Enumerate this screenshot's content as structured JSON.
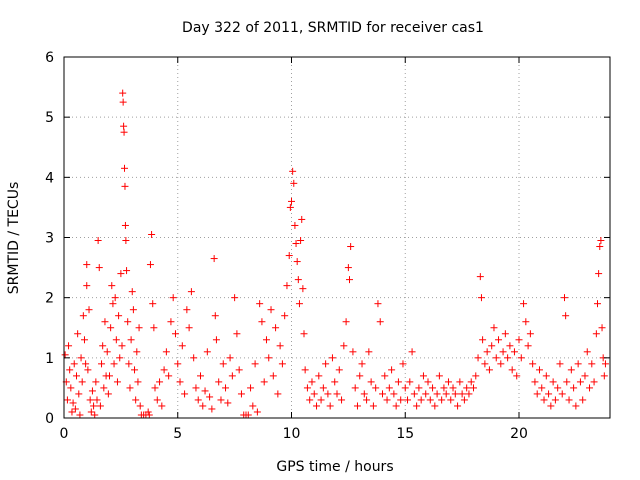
{
  "chart_data": {
    "type": "scatter",
    "title": "Day 322 of 2011, SRMTID for receiver cas1",
    "xlabel": "GPS time / hours",
    "ylabel": "SRMTID / TECUs",
    "xlim": [
      0,
      24
    ],
    "ylim": [
      0,
      6
    ],
    "x_ticks": [
      0,
      5,
      10,
      15,
      20
    ],
    "y_ticks": [
      0,
      1,
      2,
      3,
      4,
      5,
      6
    ],
    "grid": true,
    "marker": "plus",
    "series": [
      {
        "name": "cas1",
        "color": "#ff0000",
        "points": [
          [
            0.05,
            1.05
          ],
          [
            0.1,
            0.6
          ],
          [
            0.15,
            0.3
          ],
          [
            0.2,
            1.2
          ],
          [
            0.25,
            0.8
          ],
          [
            0.3,
            0.5
          ],
          [
            0.35,
            0.1
          ],
          [
            0.4,
            0.25
          ],
          [
            0.45,
            0.9
          ],
          [
            0.5,
            0.15
          ],
          [
            0.55,
            0.7
          ],
          [
            0.6,
            1.4
          ],
          [
            0.65,
            0.4
          ],
          [
            0.7,
            0.05
          ],
          [
            0.75,
            1.0
          ],
          [
            0.8,
            0.6
          ],
          [
            0.85,
            1.7
          ],
          [
            0.9,
            1.3
          ],
          [
            0.95,
            0.9
          ],
          [
            1.0,
            2.55
          ],
          [
            1.0,
            2.2
          ],
          [
            1.05,
            0.8
          ],
          [
            1.1,
            1.8
          ],
          [
            1.15,
            0.3
          ],
          [
            1.2,
            0.1
          ],
          [
            1.25,
            0.45
          ],
          [
            1.3,
            0.2
          ],
          [
            1.35,
            0.05
          ],
          [
            1.4,
            0.6
          ],
          [
            1.45,
            0.3
          ],
          [
            1.5,
            2.95
          ],
          [
            1.55,
            2.5
          ],
          [
            1.6,
            0.2
          ],
          [
            1.65,
            0.9
          ],
          [
            1.7,
            1.2
          ],
          [
            1.75,
            0.5
          ],
          [
            1.8,
            1.6
          ],
          [
            1.85,
            0.7
          ],
          [
            1.9,
            1.1
          ],
          [
            1.95,
            0.4
          ],
          [
            2.0,
            0.7
          ],
          [
            2.05,
            1.5
          ],
          [
            2.1,
            2.2
          ],
          [
            2.15,
            1.9
          ],
          [
            2.2,
            0.9
          ],
          [
            2.25,
            2.0
          ],
          [
            2.3,
            1.3
          ],
          [
            2.35,
            0.6
          ],
          [
            2.4,
            1.7
          ],
          [
            2.45,
            1.0
          ],
          [
            2.5,
            2.4
          ],
          [
            2.55,
            1.2
          ],
          [
            2.58,
            5.4
          ],
          [
            2.6,
            5.25
          ],
          [
            2.62,
            4.85
          ],
          [
            2.64,
            4.75
          ],
          [
            2.66,
            4.15
          ],
          [
            2.68,
            3.85
          ],
          [
            2.7,
            3.2
          ],
          [
            2.72,
            2.95
          ],
          [
            2.75,
            2.45
          ],
          [
            2.8,
            1.6
          ],
          [
            2.85,
            0.9
          ],
          [
            2.9,
            0.5
          ],
          [
            2.95,
            1.3
          ],
          [
            3.0,
            2.1
          ],
          [
            3.05,
            1.8
          ],
          [
            3.1,
            0.8
          ],
          [
            3.15,
            0.3
          ],
          [
            3.2,
            1.1
          ],
          [
            3.25,
            0.6
          ],
          [
            3.3,
            1.5
          ],
          [
            3.35,
            0.2
          ],
          [
            3.4,
            0.05
          ],
          [
            3.5,
            0.05
          ],
          [
            3.6,
            0.05
          ],
          [
            3.7,
            0.1
          ],
          [
            3.75,
            0.05
          ],
          [
            3.8,
            2.55
          ],
          [
            3.85,
            3.05
          ],
          [
            3.9,
            1.9
          ],
          [
            3.95,
            1.5
          ],
          [
            4.0,
            0.5
          ],
          [
            4.1,
            0.3
          ],
          [
            4.2,
            0.6
          ],
          [
            4.3,
            0.2
          ],
          [
            4.4,
            0.8
          ],
          [
            4.5,
            1.1
          ],
          [
            4.6,
            0.7
          ],
          [
            4.7,
            1.6
          ],
          [
            4.8,
            2.0
          ],
          [
            4.9,
            1.4
          ],
          [
            5.0,
            0.9
          ],
          [
            5.1,
            0.6
          ],
          [
            5.2,
            1.2
          ],
          [
            5.3,
            0.4
          ],
          [
            5.4,
            1.8
          ],
          [
            5.5,
            1.5
          ],
          [
            5.6,
            2.1
          ],
          [
            5.7,
            1.0
          ],
          [
            5.8,
            0.5
          ],
          [
            5.9,
            0.3
          ],
          [
            6.0,
            0.7
          ],
          [
            6.1,
            0.2
          ],
          [
            6.2,
            0.45
          ],
          [
            6.3,
            1.1
          ],
          [
            6.4,
            0.35
          ],
          [
            6.5,
            0.15
          ],
          [
            6.6,
            2.65
          ],
          [
            6.65,
            1.7
          ],
          [
            6.7,
            1.3
          ],
          [
            6.8,
            0.6
          ],
          [
            6.9,
            0.3
          ],
          [
            7.0,
            0.9
          ],
          [
            7.1,
            0.5
          ],
          [
            7.2,
            0.25
          ],
          [
            7.3,
            1.0
          ],
          [
            7.4,
            0.7
          ],
          [
            7.5,
            2.0
          ],
          [
            7.6,
            1.4
          ],
          [
            7.7,
            0.8
          ],
          [
            7.8,
            0.4
          ],
          [
            7.9,
            0.05
          ],
          [
            8.0,
            0.05
          ],
          [
            8.1,
            0.05
          ],
          [
            8.2,
            0.5
          ],
          [
            8.3,
            0.2
          ],
          [
            8.4,
            0.9
          ],
          [
            8.5,
            0.1
          ],
          [
            8.6,
            1.9
          ],
          [
            8.7,
            1.6
          ],
          [
            8.8,
            0.6
          ],
          [
            8.9,
            1.3
          ],
          [
            9.0,
            1.0
          ],
          [
            9.1,
            1.8
          ],
          [
            9.2,
            0.7
          ],
          [
            9.3,
            1.5
          ],
          [
            9.4,
            0.4
          ],
          [
            9.5,
            1.2
          ],
          [
            9.6,
            0.9
          ],
          [
            9.7,
            1.7
          ],
          [
            9.8,
            2.2
          ],
          [
            9.9,
            2.7
          ],
          [
            9.95,
            3.5
          ],
          [
            10.0,
            3.6
          ],
          [
            10.05,
            4.1
          ],
          [
            10.1,
            3.9
          ],
          [
            10.15,
            3.2
          ],
          [
            10.2,
            2.9
          ],
          [
            10.25,
            2.6
          ],
          [
            10.3,
            2.3
          ],
          [
            10.35,
            1.9
          ],
          [
            10.4,
            2.95
          ],
          [
            10.45,
            3.3
          ],
          [
            10.5,
            2.15
          ],
          [
            10.55,
            1.4
          ],
          [
            10.6,
            0.8
          ],
          [
            10.7,
            0.5
          ],
          [
            10.8,
            0.3
          ],
          [
            10.9,
            0.6
          ],
          [
            11.0,
            0.4
          ],
          [
            11.1,
            0.2
          ],
          [
            11.2,
            0.7
          ],
          [
            11.3,
            0.3
          ],
          [
            11.4,
            0.5
          ],
          [
            11.5,
            0.9
          ],
          [
            11.6,
            0.4
          ],
          [
            11.7,
            0.2
          ],
          [
            11.8,
            1.0
          ],
          [
            11.9,
            0.6
          ],
          [
            12.0,
            0.4
          ],
          [
            12.1,
            0.8
          ],
          [
            12.2,
            0.3
          ],
          [
            12.3,
            1.2
          ],
          [
            12.4,
            1.6
          ],
          [
            12.5,
            2.5
          ],
          [
            12.55,
            2.3
          ],
          [
            12.6,
            2.85
          ],
          [
            12.7,
            1.1
          ],
          [
            12.8,
            0.5
          ],
          [
            12.9,
            0.2
          ],
          [
            13.0,
            0.7
          ],
          [
            13.1,
            0.9
          ],
          [
            13.2,
            0.4
          ],
          [
            13.3,
            0.3
          ],
          [
            13.4,
            1.1
          ],
          [
            13.5,
            0.6
          ],
          [
            13.6,
            0.2
          ],
          [
            13.7,
            0.5
          ],
          [
            13.8,
            1.9
          ],
          [
            13.9,
            1.6
          ],
          [
            14.0,
            0.4
          ],
          [
            14.1,
            0.7
          ],
          [
            14.2,
            0.3
          ],
          [
            14.3,
            0.5
          ],
          [
            14.4,
            0.8
          ],
          [
            14.5,
            0.4
          ],
          [
            14.6,
            0.2
          ],
          [
            14.7,
            0.6
          ],
          [
            14.8,
            0.3
          ],
          [
            14.9,
            0.9
          ],
          [
            15.0,
            0.5
          ],
          [
            15.1,
            0.3
          ],
          [
            15.2,
            0.6
          ],
          [
            15.3,
            1.1
          ],
          [
            15.4,
            0.4
          ],
          [
            15.5,
            0.2
          ],
          [
            15.6,
            0.5
          ],
          [
            15.7,
            0.3
          ],
          [
            15.8,
            0.7
          ],
          [
            15.9,
            0.4
          ],
          [
            16.0,
            0.6
          ],
          [
            16.1,
            0.3
          ],
          [
            16.2,
            0.5
          ],
          [
            16.3,
            0.2
          ],
          [
            16.4,
            0.4
          ],
          [
            16.5,
            0.7
          ],
          [
            16.6,
            0.3
          ],
          [
            16.7,
            0.5
          ],
          [
            16.8,
            0.4
          ],
          [
            16.9,
            0.6
          ],
          [
            17.0,
            0.3
          ],
          [
            17.1,
            0.5
          ],
          [
            17.2,
            0.4
          ],
          [
            17.3,
            0.2
          ],
          [
            17.4,
            0.6
          ],
          [
            17.5,
            0.4
          ],
          [
            17.6,
            0.3
          ],
          [
            17.7,
            0.5
          ],
          [
            17.8,
            0.4
          ],
          [
            17.9,
            0.6
          ],
          [
            18.0,
            0.5
          ],
          [
            18.1,
            0.7
          ],
          [
            18.2,
            1.0
          ],
          [
            18.3,
            2.35
          ],
          [
            18.35,
            2.0
          ],
          [
            18.4,
            1.3
          ],
          [
            18.5,
            0.9
          ],
          [
            18.6,
            1.1
          ],
          [
            18.7,
            0.8
          ],
          [
            18.8,
            1.2
          ],
          [
            18.9,
            1.5
          ],
          [
            19.0,
            1.0
          ],
          [
            19.1,
            1.3
          ],
          [
            19.2,
            0.9
          ],
          [
            19.3,
            1.1
          ],
          [
            19.4,
            1.4
          ],
          [
            19.5,
            1.0
          ],
          [
            19.6,
            1.2
          ],
          [
            19.7,
            0.8
          ],
          [
            19.8,
            1.1
          ],
          [
            19.9,
            0.7
          ],
          [
            20.0,
            1.3
          ],
          [
            20.1,
            1.0
          ],
          [
            20.2,
            1.9
          ],
          [
            20.3,
            1.6
          ],
          [
            20.4,
            1.2
          ],
          [
            20.5,
            1.4
          ],
          [
            20.6,
            0.9
          ],
          [
            20.7,
            0.6
          ],
          [
            20.8,
            0.4
          ],
          [
            20.9,
            0.8
          ],
          [
            21.0,
            0.5
          ],
          [
            21.1,
            0.3
          ],
          [
            21.2,
            0.7
          ],
          [
            21.3,
            0.4
          ],
          [
            21.4,
            0.2
          ],
          [
            21.5,
            0.6
          ],
          [
            21.6,
            0.3
          ],
          [
            21.7,
            0.5
          ],
          [
            21.8,
            0.9
          ],
          [
            21.9,
            0.4
          ],
          [
            22.0,
            2.0
          ],
          [
            22.05,
            1.7
          ],
          [
            22.1,
            0.6
          ],
          [
            22.2,
            0.3
          ],
          [
            22.3,
            0.8
          ],
          [
            22.4,
            0.5
          ],
          [
            22.5,
            0.2
          ],
          [
            22.6,
            0.9
          ],
          [
            22.7,
            0.6
          ],
          [
            22.8,
            0.3
          ],
          [
            22.9,
            0.7
          ],
          [
            23.0,
            1.1
          ],
          [
            23.1,
            0.5
          ],
          [
            23.2,
            0.9
          ],
          [
            23.3,
            0.6
          ],
          [
            23.4,
            1.4
          ],
          [
            23.45,
            1.9
          ],
          [
            23.5,
            2.4
          ],
          [
            23.55,
            2.85
          ],
          [
            23.6,
            2.95
          ],
          [
            23.65,
            1.5
          ],
          [
            23.7,
            1.0
          ],
          [
            23.75,
            0.7
          ],
          [
            23.8,
            0.9
          ]
        ]
      }
    ]
  }
}
